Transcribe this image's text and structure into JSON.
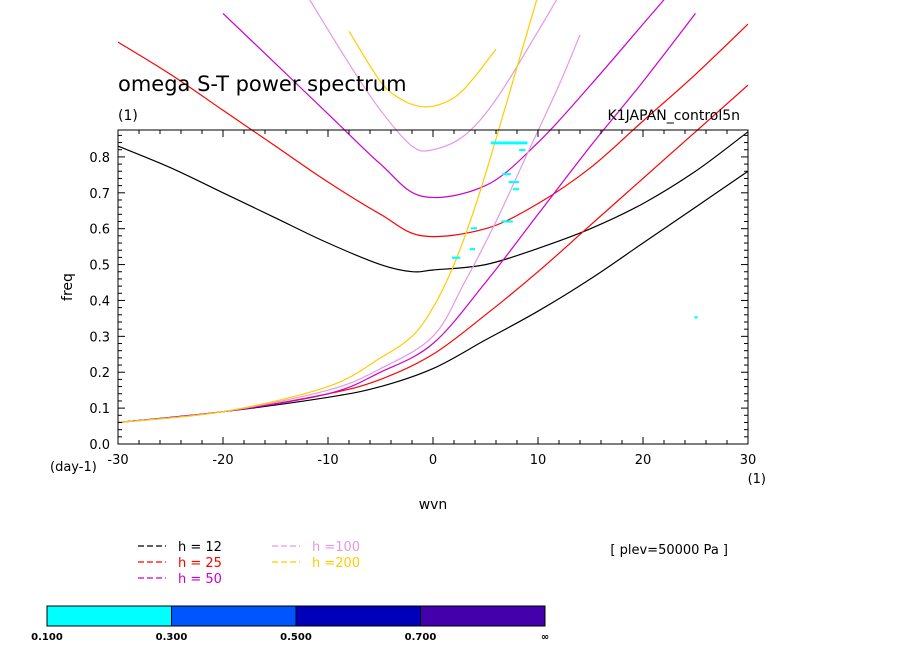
{
  "chart_data": {
    "type": "line",
    "title": "omega S-T power spectrum",
    "subtitle": "(1)",
    "run_label": "K1JAPAN_control5n",
    "xlabel": "wvn",
    "ylabel": "freq",
    "x_unit": "(1)",
    "y_unit": "(day-1)",
    "xlim": [
      -30,
      30
    ],
    "ylim": [
      0,
      0.875
    ],
    "xticks": [
      "-30",
      "-20",
      "-10",
      "0",
      "10",
      "20",
      "30"
    ],
    "yticks": [
      "0.0",
      "0.1",
      "0.2",
      "0.3",
      "0.4",
      "0.5",
      "0.6",
      "0.7",
      "0.8"
    ],
    "level_note": "[ plev=50000 Pa ]",
    "series": [
      {
        "name": "h = 12",
        "color": "#000000",
        "upper": {
          "x": [
            -30,
            -25,
            -20,
            -15,
            -10,
            -5,
            -2,
            0,
            5,
            10,
            15,
            20,
            25,
            30
          ],
          "y": [
            0.83,
            0.77,
            0.7,
            0.63,
            0.56,
            0.5,
            0.48,
            0.485,
            0.5,
            0.545,
            0.6,
            0.67,
            0.76,
            0.87
          ]
        },
        "lower": {
          "x": [
            -30,
            -20,
            -10,
            -5,
            0,
            5,
            10,
            15,
            20,
            25,
            30
          ],
          "y": [
            0.06,
            0.09,
            0.13,
            0.16,
            0.21,
            0.29,
            0.37,
            0.46,
            0.56,
            0.66,
            0.76
          ]
        }
      },
      {
        "name": "h = 25",
        "color": "#ff0000",
        "upper": {
          "x": [
            -30,
            -25,
            -20,
            -15,
            -10,
            -5,
            -1,
            5,
            10,
            15,
            20,
            25,
            30
          ],
          "y": [
            1.12,
            1.03,
            0.93,
            0.83,
            0.73,
            0.64,
            0.58,
            0.6,
            0.67,
            0.77,
            0.9,
            1.03,
            1.17
          ]
        },
        "lower": {
          "x": [
            -30,
            -20,
            -10,
            -5,
            0,
            5,
            10,
            15,
            20,
            25,
            30
          ],
          "y": [
            0.06,
            0.09,
            0.14,
            0.18,
            0.25,
            0.36,
            0.48,
            0.61,
            0.74,
            0.87,
            1.0
          ]
        }
      },
      {
        "name": "h = 50",
        "color": "#cc00cc",
        "upper": {
          "x": [
            -20,
            -15,
            -10,
            -5,
            -1,
            5,
            10,
            15,
            20,
            25
          ],
          "y": [
            1.2,
            1.06,
            0.92,
            0.78,
            0.69,
            0.72,
            0.84,
            1.0,
            1.17,
            1.34
          ]
        },
        "lower": {
          "x": [
            -30,
            -20,
            -10,
            -5,
            0,
            5,
            10,
            15,
            20,
            25
          ],
          "y": [
            0.06,
            0.09,
            0.14,
            0.2,
            0.28,
            0.45,
            0.64,
            0.83,
            1.01,
            1.2
          ]
        }
      },
      {
        "name": "h =100",
        "color": "#e39ae3",
        "upper": {
          "x": [
            -12,
            -8,
            -5,
            -2,
            0,
            3,
            6,
            10,
            13
          ],
          "y": [
            1.25,
            1.06,
            0.93,
            0.83,
            0.82,
            0.86,
            0.96,
            1.15,
            1.3
          ]
        },
        "lower": {
          "x": [
            -30,
            -20,
            -10,
            -5,
            0,
            3,
            6,
            9,
            12,
            14
          ],
          "y": [
            0.06,
            0.09,
            0.15,
            0.21,
            0.3,
            0.45,
            0.62,
            0.81,
            1.0,
            1.14
          ]
        }
      },
      {
        "name": "h =200",
        "color": "#ffcc00",
        "upper": {
          "x": [
            -8,
            -5,
            -3,
            -1,
            1,
            3,
            6
          ],
          "y": [
            1.15,
            1.01,
            0.96,
            0.94,
            0.95,
            0.99,
            1.1
          ]
        },
        "lower": {
          "x": [
            -30,
            -20,
            -10,
            -5,
            -2,
            0,
            2,
            4,
            6,
            8,
            10
          ],
          "y": [
            0.06,
            0.09,
            0.16,
            0.24,
            0.3,
            0.38,
            0.5,
            0.66,
            0.85,
            1.05,
            1.25
          ]
        }
      }
    ],
    "shaded_regions": [
      {
        "x": [
          5.5,
          9
        ],
        "y": [
          0.835,
          0.843
        ]
      },
      {
        "x": [
          8.2,
          8.8
        ],
        "y": [
          0.816,
          0.822
        ]
      },
      {
        "x": [
          6.6,
          7.4
        ],
        "y": [
          0.749,
          0.755
        ]
      },
      {
        "x": [
          7.2,
          8.2
        ],
        "y": [
          0.727,
          0.733
        ]
      },
      {
        "x": [
          7.6,
          8.2
        ],
        "y": [
          0.707,
          0.713
        ]
      },
      {
        "x": [
          6.5,
          7.6
        ],
        "y": [
          0.617,
          0.623
        ]
      },
      {
        "x": [
          3.6,
          4.2
        ],
        "y": [
          0.598,
          0.604
        ]
      },
      {
        "x": [
          3.5,
          4.0
        ],
        "y": [
          0.54,
          0.546
        ]
      },
      {
        "x": [
          1.8,
          2.6
        ],
        "y": [
          0.516,
          0.522
        ]
      },
      {
        "x": [
          24.9,
          25.2
        ],
        "y": [
          0.35,
          0.356
        ]
      }
    ],
    "colorbar": {
      "colors": [
        "#00ffff",
        "#0055ff",
        "#0000bb",
        "#4400aa"
      ],
      "labels": [
        "0.100",
        "0.300",
        "0.500",
        "0.700",
        "∞"
      ]
    }
  }
}
